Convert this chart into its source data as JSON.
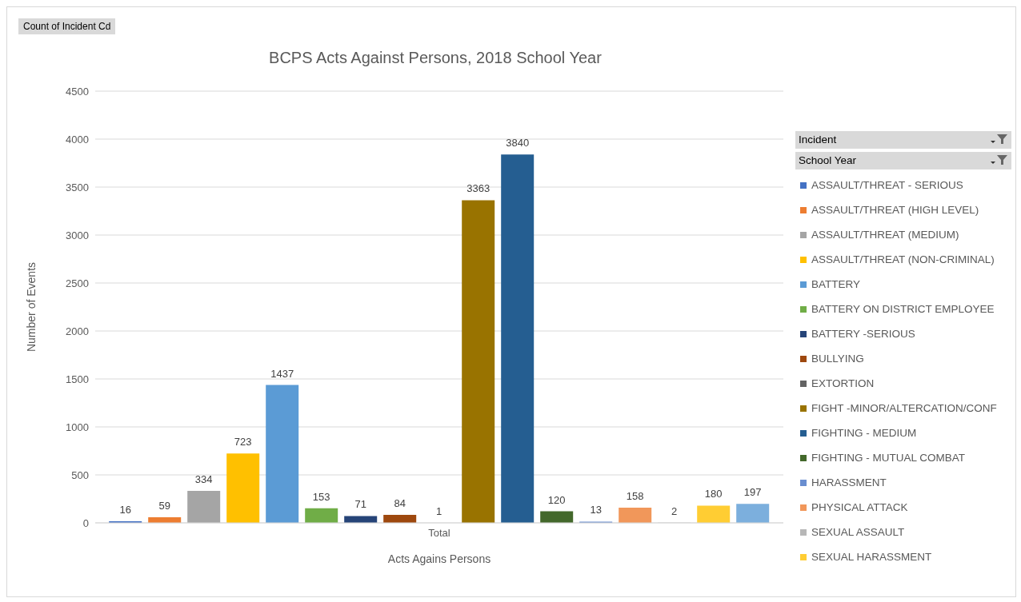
{
  "chart_data": {
    "type": "bar",
    "title": "BCPS Acts Against Persons, 2018 School Year",
    "xlabel": "Acts Agains Persons",
    "ylabel": "Number  of Events",
    "categories": [
      "Total"
    ],
    "series": [
      {
        "name": "ASSAULT/THREAT - SERIOUS",
        "color": "#4472c4",
        "values": [
          16
        ]
      },
      {
        "name": "ASSAULT/THREAT (HIGH LEVEL)",
        "color": "#ed7d31",
        "values": [
          59
        ]
      },
      {
        "name": "ASSAULT/THREAT (MEDIUM)",
        "color": "#a5a5a5",
        "values": [
          334
        ]
      },
      {
        "name": "ASSAULT/THREAT (NON-CRIMINAL)",
        "color": "#ffc000",
        "values": [
          723
        ]
      },
      {
        "name": "BATTERY",
        "color": "#5b9bd5",
        "values": [
          1437
        ]
      },
      {
        "name": "BATTERY ON DISTRICT EMPLOYEE",
        "color": "#70ad47",
        "values": [
          153
        ]
      },
      {
        "name": "BATTERY -SERIOUS",
        "color": "#264478",
        "values": [
          71
        ]
      },
      {
        "name": "BULLYING",
        "color": "#9e480e",
        "values": [
          84
        ]
      },
      {
        "name": "EXTORTION",
        "color": "#636363",
        "values": [
          1
        ]
      },
      {
        "name": "FIGHT -MINOR/ALTERCATION/CONF",
        "color": "#997300",
        "values": [
          3363
        ]
      },
      {
        "name": "FIGHTING - MEDIUM",
        "color": "#255e91",
        "values": [
          3840
        ]
      },
      {
        "name": "FIGHTING - MUTUAL COMBAT",
        "color": "#43682b",
        "values": [
          120
        ]
      },
      {
        "name": "HARASSMENT",
        "color": "#698ed0",
        "values": [
          13
        ]
      },
      {
        "name": "PHYSICAL ATTACK",
        "color": "#f1975a",
        "values": [
          158
        ]
      },
      {
        "name": "SEXUAL ASSAULT",
        "color": "#b7b7b7",
        "values": [
          2
        ]
      },
      {
        "name": "SEXUAL HARASSMENT",
        "color": "#ffcd33",
        "values": [
          180
        ]
      },
      {
        "color": "#7cafdd",
        "values": [
          197
        ]
      }
    ],
    "ylim": [
      0,
      4500
    ],
    "yticks": [
      0,
      500,
      1000,
      1500,
      2000,
      2500,
      3000,
      3500,
      4000,
      4500
    ],
    "grid": "y",
    "legend": "right",
    "data_labels": true,
    "annotations": [
      "Count of Incident Cd",
      "Incident",
      "School Year"
    ]
  }
}
